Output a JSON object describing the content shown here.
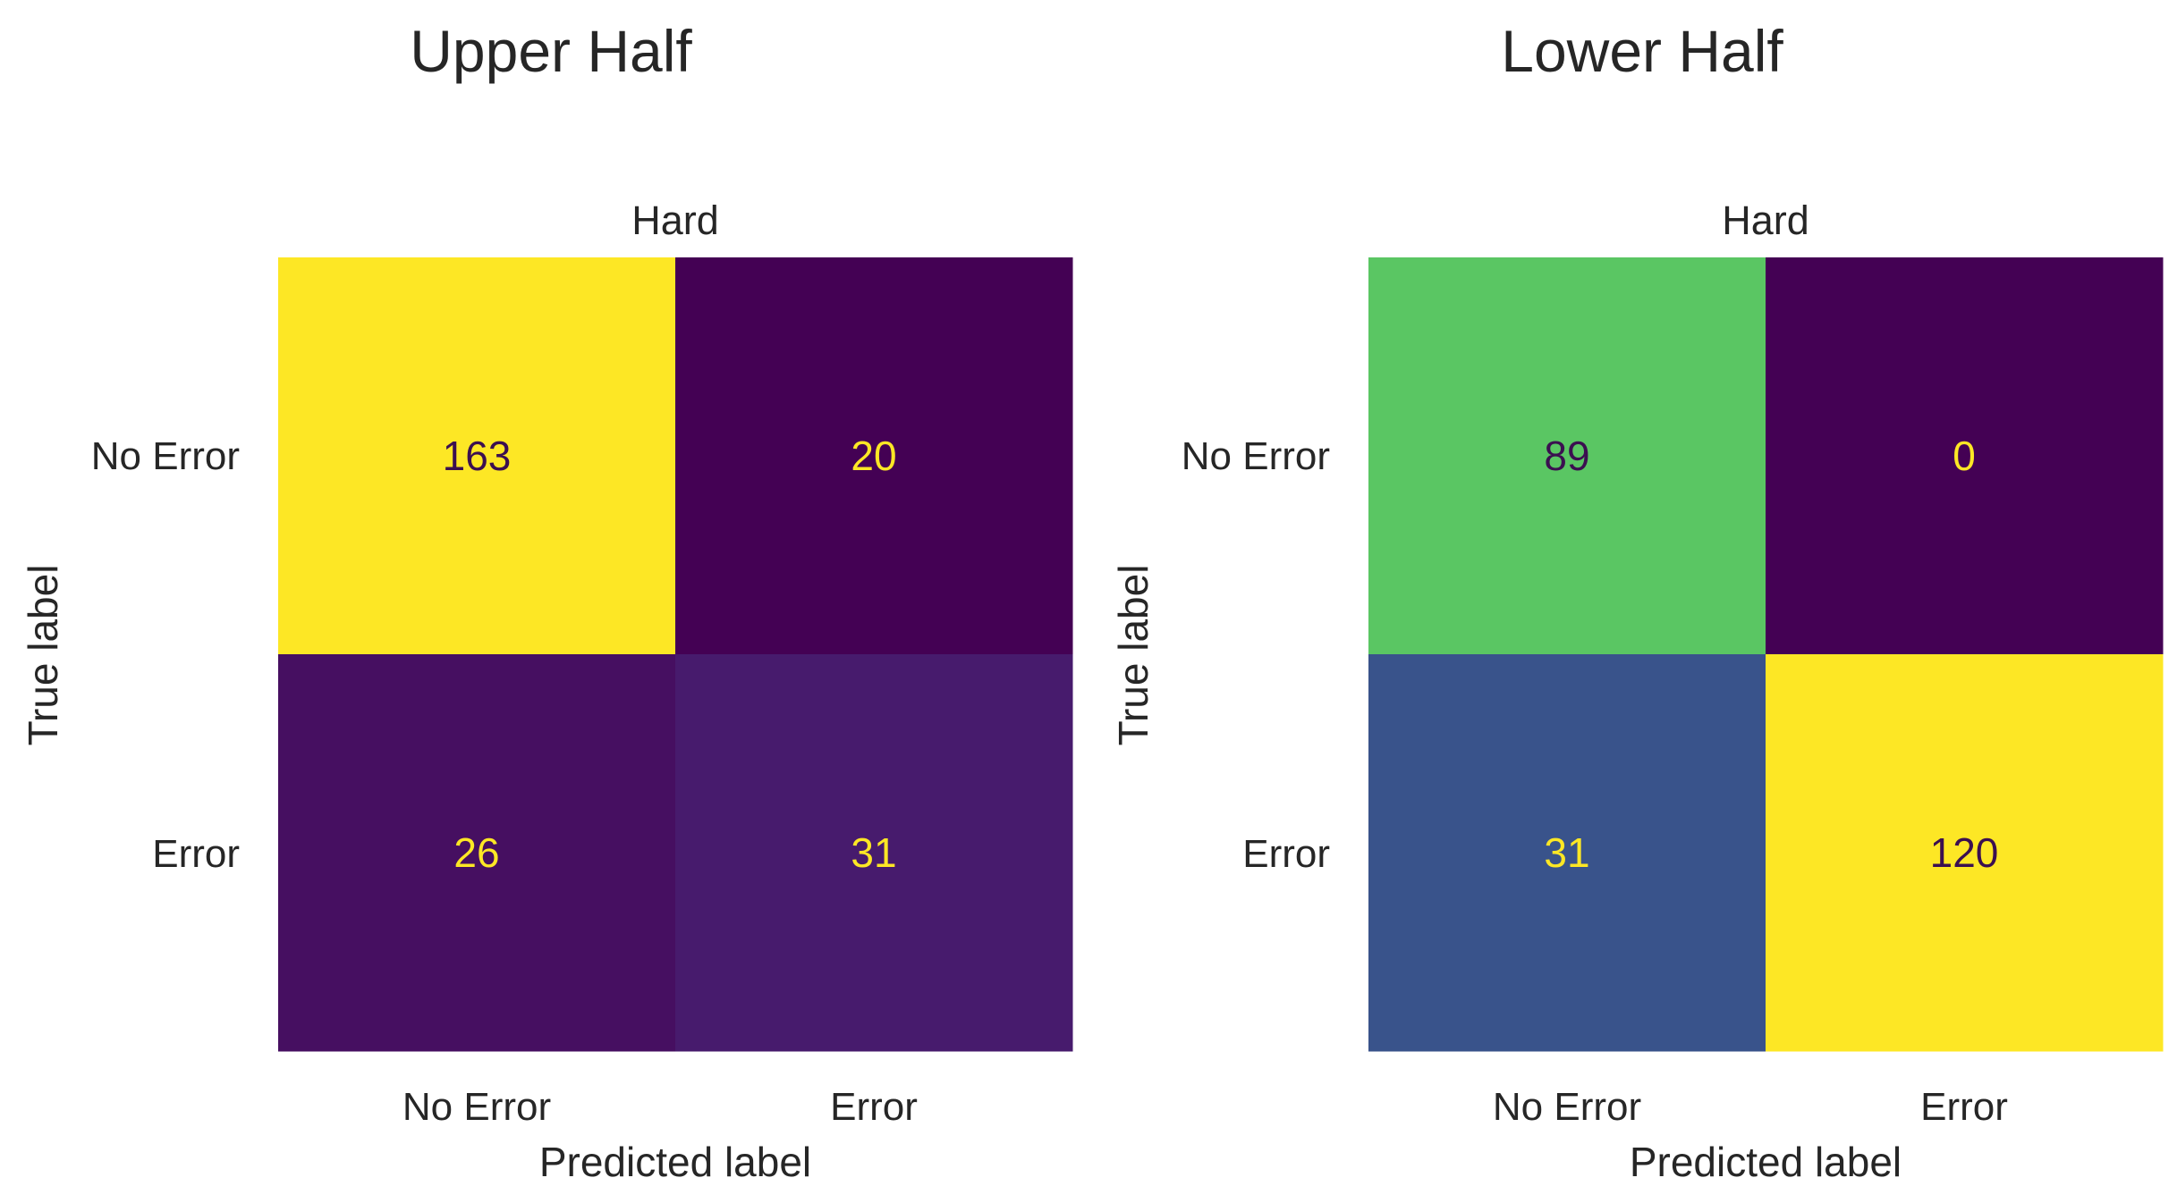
{
  "chart_data": [
    {
      "type": "heatmap",
      "suptitle": "Upper Half",
      "title": "Hard",
      "xlabel": "Predicted label",
      "ylabel": "True label",
      "x_tick_labels": [
        "No Error",
        "Error"
      ],
      "y_tick_labels": [
        "No Error",
        "Error"
      ],
      "values": [
        [
          163,
          20
        ],
        [
          26,
          31
        ]
      ],
      "colormap": "viridis",
      "color_range": [
        20,
        163
      ],
      "grid": false
    },
    {
      "type": "heatmap",
      "suptitle": "Lower Half",
      "title": "Hard",
      "xlabel": "Predicted label",
      "ylabel": "True label",
      "x_tick_labels": [
        "No Error",
        "Error"
      ],
      "y_tick_labels": [
        "No Error",
        "Error"
      ],
      "values": [
        [
          89,
          0
        ],
        [
          31,
          120
        ]
      ],
      "colormap": "viridis",
      "color_range": [
        0,
        120
      ],
      "grid": false
    }
  ]
}
